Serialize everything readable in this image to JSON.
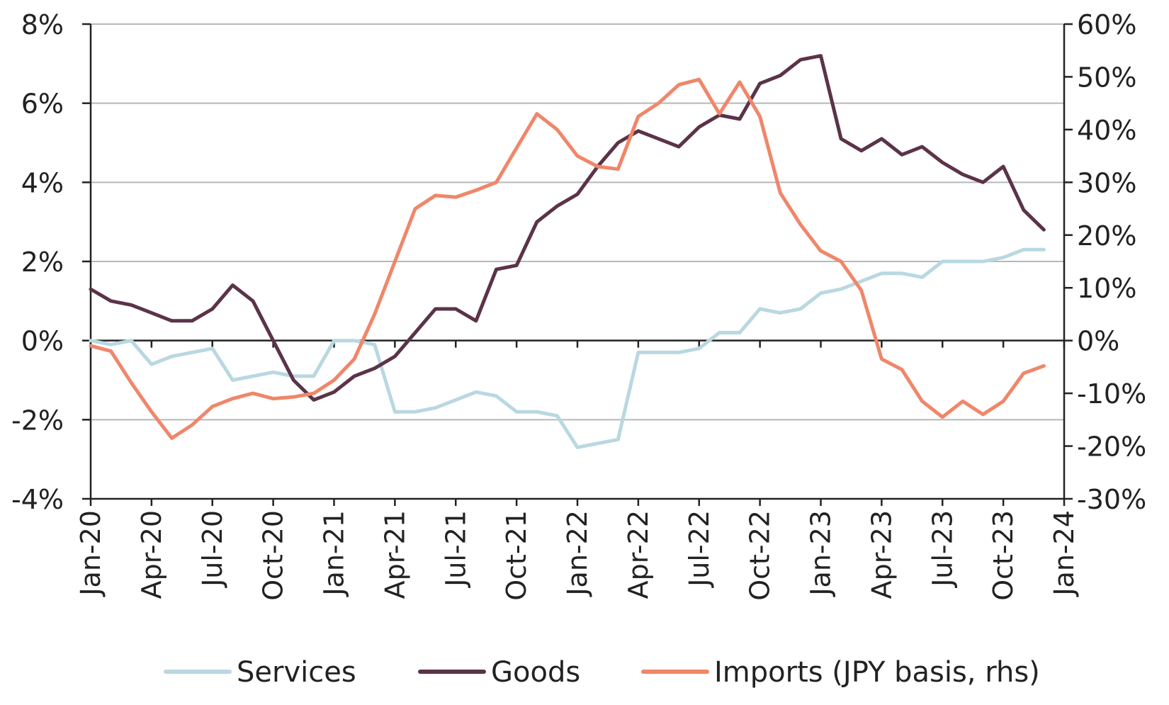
{
  "chart_data": {
    "type": "line",
    "x": [
      "2020-01",
      "2020-02",
      "2020-03",
      "2020-04",
      "2020-05",
      "2020-06",
      "2020-07",
      "2020-08",
      "2020-09",
      "2020-10",
      "2020-11",
      "2020-12",
      "2021-01",
      "2021-02",
      "2021-03",
      "2021-04",
      "2021-05",
      "2021-06",
      "2021-07",
      "2021-08",
      "2021-09",
      "2021-10",
      "2021-11",
      "2021-12",
      "2022-01",
      "2022-02",
      "2022-03",
      "2022-04",
      "2022-05",
      "2022-06",
      "2022-07",
      "2022-08",
      "2022-09",
      "2022-10",
      "2022-11",
      "2022-12",
      "2023-01",
      "2023-02",
      "2023-03",
      "2023-04",
      "2023-05",
      "2023-06",
      "2023-07",
      "2023-08",
      "2023-09",
      "2023-10",
      "2023-11",
      "2023-12"
    ],
    "x_ticks": [
      "Jan-20",
      "Apr-20",
      "Jul-20",
      "Oct-20",
      "Jan-21",
      "Apr-21",
      "Jul-21",
      "Oct-21",
      "Jan-22",
      "Apr-22",
      "Jul-22",
      "Oct-22",
      "Jan-23",
      "Apr-23",
      "Jul-23",
      "Oct-23",
      "Jan-24"
    ],
    "y_left": {
      "lim": [
        -4,
        8
      ],
      "ticks": [
        "-4%",
        "-2%",
        "0%",
        "2%",
        "4%",
        "6%",
        "8%"
      ],
      "tick_values": [
        -4,
        -2,
        0,
        2,
        4,
        6,
        8
      ]
    },
    "y_right": {
      "lim": [
        -30,
        60
      ],
      "ticks": [
        "-30%",
        "-20%",
        "-10%",
        "0%",
        "10%",
        "20%",
        "30%",
        "40%",
        "50%",
        "60%"
      ],
      "tick_values": [
        -30,
        -20,
        -10,
        0,
        10,
        20,
        30,
        40,
        50,
        60
      ]
    },
    "grid": true,
    "legend_position": "bottom",
    "series": [
      {
        "name": "Services",
        "axis": "left",
        "color": "#b9d8e1",
        "values": [
          0,
          -0.1,
          0,
          -0.6,
          -0.4,
          -0.3,
          -0.2,
          -1.0,
          -0.9,
          -0.8,
          -0.9,
          -0.9,
          0,
          0,
          -0.1,
          -1.8,
          -1.8,
          -1.7,
          -1.5,
          -1.3,
          -1.4,
          -1.8,
          -1.8,
          -1.9,
          -2.7,
          -2.6,
          -2.5,
          -0.3,
          -0.3,
          -0.3,
          -0.2,
          0.2,
          0.2,
          0.8,
          0.7,
          0.8,
          1.2,
          1.3,
          1.5,
          1.7,
          1.7,
          1.6,
          2.0,
          2.0,
          2.0,
          2.1,
          2.3,
          2.3
        ]
      },
      {
        "name": "Goods",
        "axis": "left",
        "color": "#5b3348",
        "values": [
          1.3,
          1.0,
          0.9,
          0.7,
          0.5,
          0.5,
          0.8,
          1.4,
          1.0,
          0,
          -1.0,
          -1.5,
          -1.3,
          -0.9,
          -0.7,
          -0.4,
          0.2,
          0.8,
          0.8,
          0.5,
          1.8,
          1.9,
          3.0,
          3.4,
          3.7,
          4.4,
          5.0,
          5.3,
          5.1,
          4.9,
          5.4,
          5.7,
          5.6,
          6.5,
          6.7,
          7.1,
          7.2,
          5.1,
          4.8,
          5.1,
          4.7,
          4.9,
          4.5,
          4.2,
          4.0,
          4.4,
          3.3,
          2.8
        ]
      },
      {
        "name": "Imports (JPY basis, rhs)",
        "axis": "right",
        "color": "#f0866a",
        "values": [
          -1,
          -2,
          -8,
          -13.5,
          -18.5,
          -16,
          -12.5,
          -11,
          -10,
          -11,
          -10.7,
          -10,
          -7.5,
          -3.5,
          5,
          15,
          25,
          27.5,
          27.2,
          28.5,
          30,
          36.5,
          43,
          40,
          35,
          33,
          32.5,
          42.5,
          45,
          48.5,
          49.5,
          43,
          49,
          42.5,
          28,
          22,
          17,
          15,
          9.5,
          -3.5,
          -5.5,
          -11.5,
          -14.5,
          -11.5,
          -14,
          -11.5,
          -6.2,
          -4.8
        ]
      }
    ]
  }
}
